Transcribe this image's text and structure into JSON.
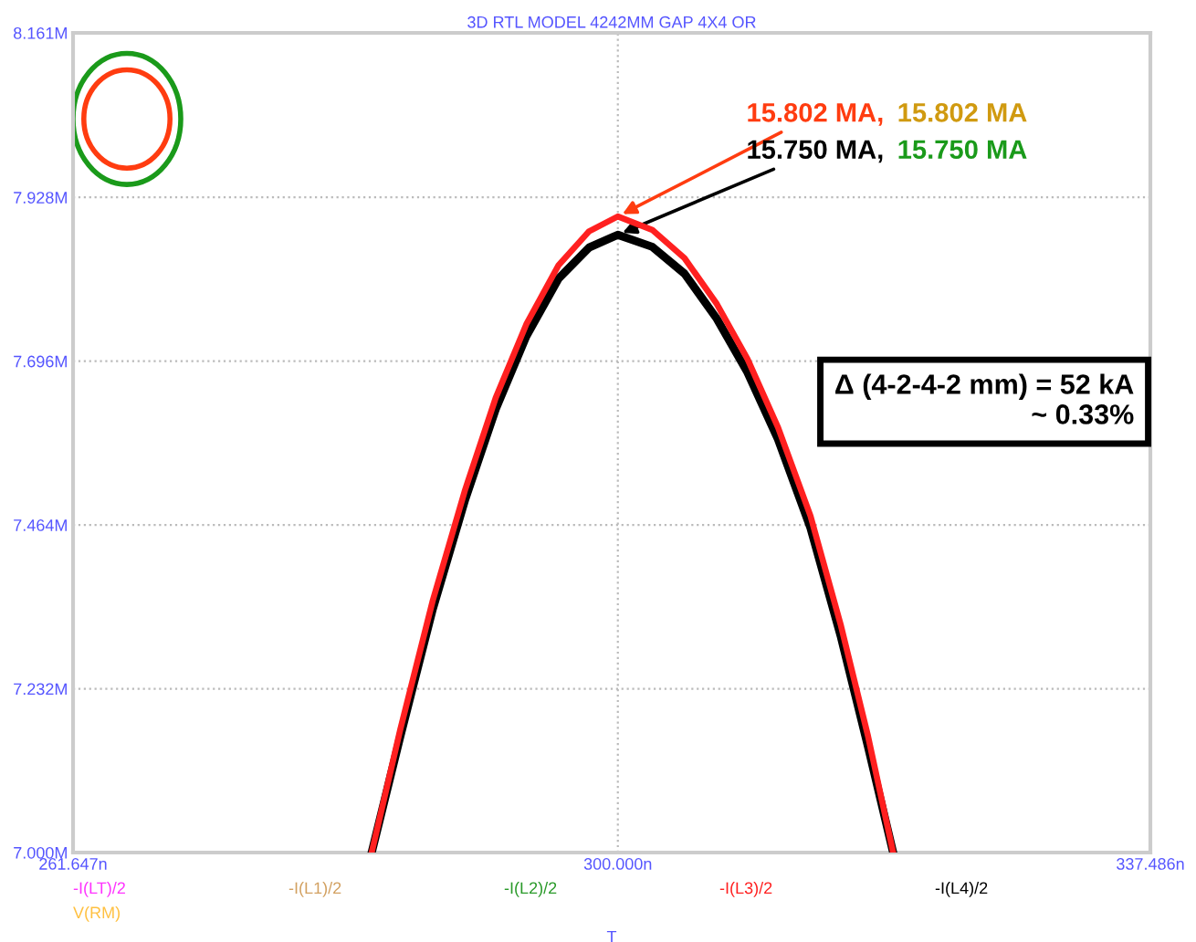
{
  "chart_data": {
    "type": "line",
    "title": "3D RTL MODEL 4242MM GAP 4X4 OR",
    "xlabel": "T",
    "x": [
      282.67,
      284.69,
      286.97,
      289.25,
      291.4,
      293.55,
      295.83,
      297.98,
      300.0,
      302.42,
      304.69,
      306.97,
      309.13,
      311.28,
      313.56,
      315.71,
      317.61,
      319.38
    ],
    "series": [
      {
        "name": "-I(LT)/2",
        "color": "#ff33ff",
        "values": [
          null,
          null,
          null,
          null,
          null,
          null,
          null,
          null,
          null,
          null,
          null,
          null,
          null,
          null,
          null,
          null,
          null,
          null
        ]
      },
      {
        "name": "-I(L1)/2",
        "color": "#d2a060",
        "values": [
          null,
          null,
          null,
          null,
          null,
          null,
          null,
          null,
          null,
          null,
          null,
          null,
          null,
          null,
          null,
          null,
          null,
          null
        ]
      },
      {
        "name": "-I(L2)/2",
        "color": "#2a9a2a",
        "values": [
          null,
          null,
          null,
          null,
          null,
          null,
          null,
          null,
          null,
          null,
          null,
          null,
          null,
          null,
          null,
          null,
          null,
          null
        ]
      },
      {
        "name": "-I(L3)/2",
        "color": "#ff2020",
        "values": [
          7.0,
          7.175,
          7.357,
          7.514,
          7.644,
          7.748,
          7.832,
          7.88,
          7.901,
          7.882,
          7.842,
          7.777,
          7.699,
          7.602,
          7.477,
          7.321,
          7.165,
          7.0
        ]
      },
      {
        "name": "-I(L4)/2",
        "color": "#000000",
        "values": [
          7.0,
          7.165,
          7.345,
          7.5,
          7.628,
          7.731,
          7.813,
          7.857,
          7.875,
          7.858,
          7.82,
          7.756,
          7.68,
          7.585,
          7.46,
          7.305,
          7.15,
          7.0
        ]
      },
      {
        "name": "V(RM)",
        "color": "#ffc040",
        "values": [
          null,
          null,
          null,
          null,
          null,
          null,
          null,
          null,
          null,
          null,
          null,
          null,
          null,
          null,
          null,
          null,
          null,
          null
        ]
      }
    ],
    "xlim": [
      261.647,
      337.486
    ],
    "xticks": [
      {
        "value": 261.647,
        "label": "261.647n"
      },
      {
        "value": 300.0,
        "label": "300.000n"
      },
      {
        "value": 337.486,
        "label": "337.486n"
      }
    ],
    "ylim": [
      7.0,
      8.161
    ],
    "yticks": [
      {
        "value": 7.0,
        "label": "7.000M"
      },
      {
        "value": 7.232,
        "label": "7.232M"
      },
      {
        "value": 7.464,
        "label": "7.464M"
      },
      {
        "value": 7.696,
        "label": "7.696M"
      },
      {
        "value": 7.928,
        "label": "7.928M"
      },
      {
        "value": 8.161,
        "label": "8.161M"
      }
    ],
    "grid": true,
    "line_style": "solid",
    "legend": "bottom",
    "annotations": [
      {
        "text": "15.802 MA,",
        "x": 300.0,
        "y": 7.901
      },
      "15.802 MA",
      {
        "text": "15.750 MA,",
        "x": 300.0,
        "y": 7.875
      },
      "15.750 MA",
      "Δ (4-2-4-2 mm) = 52 kA\n~ 0.33%"
    ]
  }
}
